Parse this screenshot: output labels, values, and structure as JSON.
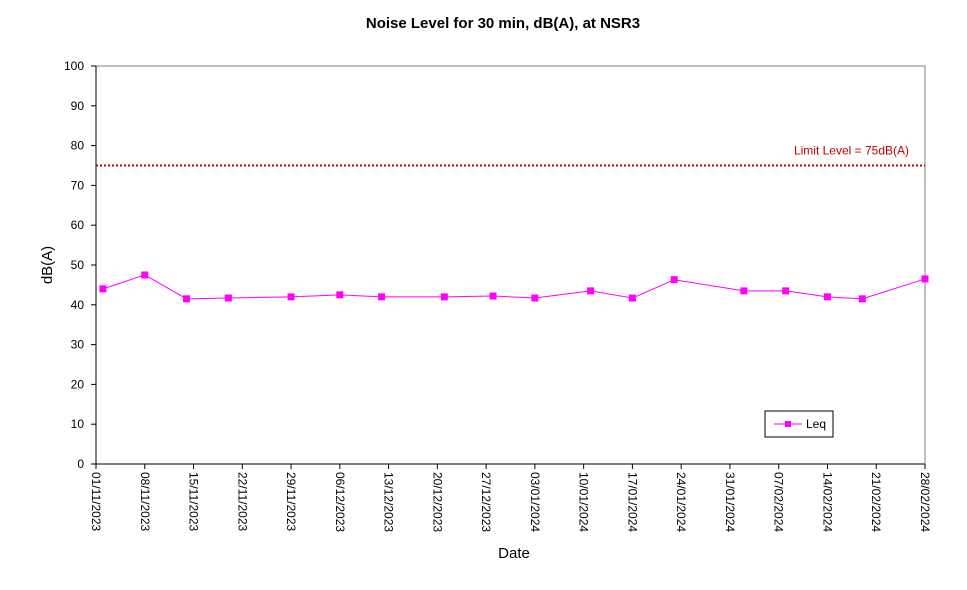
{
  "chart_data": {
    "type": "line",
    "title": "Noise Level for 30 min, dB(A), at NSR3",
    "xlabel": "Date",
    "ylabel": "dB(A)",
    "ylim": [
      0,
      100
    ],
    "yticks": [
      0,
      10,
      20,
      30,
      40,
      50,
      60,
      70,
      80,
      90,
      100
    ],
    "xlim": [
      "2023-11-01",
      "2024-02-28"
    ],
    "xticks": [
      "01/11/2023",
      "08/11/2023",
      "15/11/2023",
      "22/11/2023",
      "29/11/2023",
      "06/12/2023",
      "13/12/2023",
      "20/12/2023",
      "27/12/2023",
      "03/01/2024",
      "10/01/2024",
      "17/01/2024",
      "24/01/2024",
      "31/01/2024",
      "07/02/2024",
      "14/02/2024",
      "21/02/2024",
      "28/02/2024"
    ],
    "series": [
      {
        "name": "Leq",
        "color": "#ff00ff",
        "marker": "square",
        "x": [
          "2023-11-02",
          "2023-11-08",
          "2023-11-14",
          "2023-11-20",
          "2023-11-29",
          "2023-12-06",
          "2023-12-12",
          "2023-12-21",
          "2023-12-28",
          "2024-01-03",
          "2024-01-11",
          "2024-01-17",
          "2024-01-23",
          "2024-02-02",
          "2024-02-08",
          "2024-02-14",
          "2024-02-19",
          "2024-02-28"
        ],
        "y": [
          44.0,
          47.5,
          41.5,
          41.7,
          42.0,
          42.5,
          42.0,
          42.0,
          42.2,
          41.7,
          43.5,
          41.7,
          46.3,
          43.5,
          43.5,
          42.0,
          41.5,
          46.5
        ]
      }
    ],
    "reference_line": {
      "value": 75,
      "label": "Limit Level  = 75dB(A)",
      "color": "#c00000",
      "style": "dotted"
    },
    "legend": {
      "position": "bottom-right",
      "entries": [
        "Leq"
      ]
    },
    "grid": false
  }
}
